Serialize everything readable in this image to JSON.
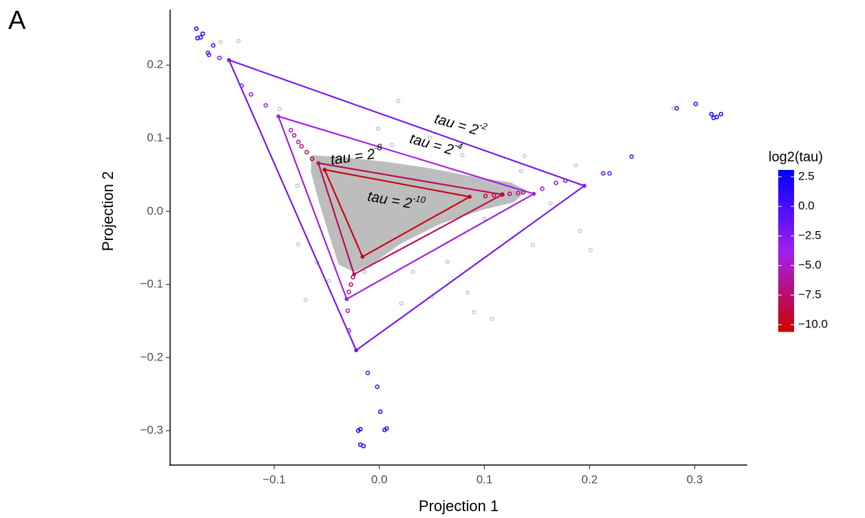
{
  "chart_data": {
    "type": "scatter",
    "panel_label": "A",
    "xlabel": "Projection 1",
    "ylabel": "Projection 2",
    "xlim": [
      -0.199,
      0.35
    ],
    "ylim": [
      -0.347,
      0.276
    ],
    "xticks": [
      {
        "value": -0.1,
        "label": "−0.1"
      },
      {
        "value": 0,
        "label": "0.0"
      },
      0.1,
      0.2,
      0.3
    ],
    "yticks": [
      {
        "value": -0.3,
        "label": "−0.3"
      },
      {
        "value": -0.2,
        "label": "−0.2"
      },
      {
        "value": -0.1,
        "label": "−0.1"
      },
      {
        "value": 0,
        "label": "0.0"
      },
      0.1,
      0.2
    ],
    "colorbar": {
      "title": "log2(tau)",
      "lim": [
        -10.58,
        3.08
      ],
      "ticks": [
        2.5,
        {
          "value": 0,
          "label": "0.0"
        },
        {
          "value": -2.5,
          "label": "−2.5"
        },
        {
          "value": -5,
          "label": "−5.0"
        },
        {
          "value": -7.5,
          "label": "−7.5"
        },
        {
          "value": -10,
          "label": "−10.0"
        }
      ],
      "colors": [
        "#cc0000",
        "#a020f0",
        "#0000ff"
      ]
    },
    "cloud": {
      "color": "#bdbdbd",
      "x": [
        -0.063,
        -0.033,
        0.006,
        0.045,
        0.084,
        0.124,
        0.137,
        0.127,
        0.098,
        0.058,
        0.019,
        -0.007,
        -0.024,
        -0.037,
        -0.046,
        -0.056,
        -0.063
      ],
      "y": [
        0.074,
        0.071,
        0.065,
        0.057,
        0.046,
        0.037,
        0.028,
        0.015,
        0.005,
        -0.014,
        -0.042,
        -0.069,
        -0.08,
        -0.071,
        -0.031,
        0.016,
        0.054
      ]
    },
    "gray_points": {
      "color": "#bdbdbd",
      "x": [
        -0.151,
        -0.134,
        -0.095,
        -0.001,
        0.018,
        0.28,
        0.138,
        0.187,
        0.191,
        0.201,
        0.146,
        0.09,
        0.084,
        0.107,
        0.05,
        0.021,
        -0.07,
        -0.077,
        -0.078,
        -0.059,
        0.012,
        0.048,
        0.079,
        0.135,
        0.1,
        0.065,
        0.032,
        -0.048,
        -0.014,
        -0.04,
        0.163
      ],
      "y": [
        0.232,
        0.233,
        0.14,
        0.113,
        0.151,
        0.141,
        0.076,
        0.063,
        -0.027,
        -0.053,
        -0.046,
        -0.138,
        -0.111,
        -0.147,
        -0.117,
        -0.126,
        -0.121,
        -0.045,
        0.035,
        -0.07,
        0.091,
        0.101,
        0.077,
        0.055,
        -0.01,
        -0.069,
        -0.083,
        -0.095,
        -0.083,
        -0.008,
        0.011
      ]
    },
    "points": {
      "x": [
        -0.174,
        -0.173,
        -0.17,
        -0.168,
        -0.158,
        -0.163,
        -0.162,
        -0.152,
        -0.131,
        -0.122,
        -0.108,
        -0.084,
        -0.081,
        -0.077,
        -0.074,
        -0.069,
        -0.064,
        0.283,
        0.301,
        0.316,
        0.318,
        0.321,
        0.325,
        0.24,
        0.219,
        0.213,
        0.177,
        0.168,
        0.155,
        0.137,
        0.132,
        0.124,
        0.117,
        0.109,
        0.101,
        -0.03,
        -0.029,
        -0.027,
        -0.025,
        -0.029,
        -0.011,
        -0.002,
        0.001,
        0.005,
        0.007,
        -0.02,
        -0.018,
        -0.018,
        -0.015
      ],
      "y": [
        0.25,
        0.237,
        0.238,
        0.243,
        0.227,
        0.217,
        0.214,
        0.21,
        0.172,
        0.16,
        0.145,
        0.111,
        0.104,
        0.095,
        0.089,
        0.081,
        0.072,
        0.141,
        0.147,
        0.133,
        0.128,
        0.129,
        0.133,
        0.075,
        0.052,
        0.052,
        0.042,
        0.039,
        0.031,
        0.026,
        0.025,
        0.024,
        0.023,
        0.022,
        0.021,
        -0.136,
        -0.11,
        -0.1,
        -0.09,
        -0.163,
        -0.221,
        -0.24,
        -0.274,
        -0.299,
        -0.297,
        -0.3,
        -0.298,
        -0.319,
        -0.321
      ],
      "log2_tau": [
        2.5,
        2,
        2,
        2,
        0,
        -1,
        -1,
        -2,
        -3,
        -3,
        -4,
        -5,
        -6,
        -6,
        -7,
        -8,
        -9,
        0,
        1.5,
        2.5,
        2.5,
        2.5,
        2.5,
        -1,
        -1.5,
        -1.5,
        -2,
        -3,
        -3,
        -6,
        -7,
        -8,
        -9,
        -9,
        -10,
        -5,
        -6,
        -7,
        -8,
        -3,
        -1,
        -0.5,
        1,
        1.5,
        1.5,
        2,
        2,
        2.5,
        2.5
      ]
    },
    "triangles": [
      {
        "label": "tau = 2",
        "exponent": "-2",
        "log2_tau": -2,
        "x": [
          -0.143,
          0.195,
          -0.022
        ],
        "y": [
          0.207,
          0.035,
          -0.19
        ]
      },
      {
        "label": "tau = 2",
        "exponent": "-4",
        "log2_tau": -4,
        "x": [
          -0.096,
          0.147,
          -0.031
        ],
        "y": [
          0.13,
          0.024,
          -0.12
        ]
      },
      {
        "label": "tau = 2",
        "exponent": "-8",
        "log2_tau": -8,
        "x": [
          -0.058,
          0.117,
          -0.024
        ],
        "y": [
          0.066,
          0.023,
          -0.086
        ]
      },
      {
        "label": "tau = 2",
        "exponent": "-10",
        "log2_tau": -10,
        "x": [
          -0.052,
          0.086,
          -0.016
        ],
        "y": [
          0.057,
          0.02,
          -0.062
        ]
      }
    ]
  }
}
